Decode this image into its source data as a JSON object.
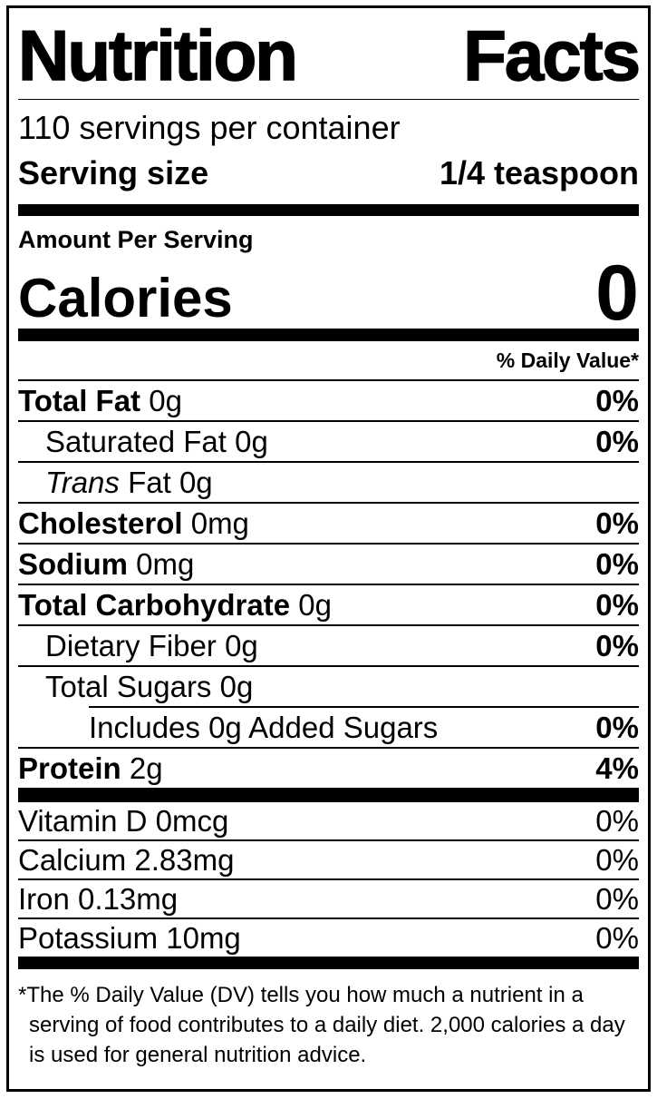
{
  "header": {
    "title_word1": "Nutrition",
    "title_word2": "Facts",
    "servings_per_container": "110 servings per container",
    "serving_size_label": "Serving size",
    "serving_size_value": "1/4 teaspoon"
  },
  "calories": {
    "amount_per_serving_label": "Amount Per Serving",
    "label": "Calories",
    "value": "0"
  },
  "daily_value_header": "% Daily Value*",
  "nutrients": [
    {
      "name": "Total Fat",
      "amount": "0g",
      "dv": "0%"
    },
    {
      "name": "Saturated Fat",
      "amount": "0g",
      "dv": "0%"
    },
    {
      "name_italic": "Trans",
      "name": "Fat",
      "amount": "0g",
      "dv": ""
    },
    {
      "name": "Cholesterol",
      "amount": "0mg",
      "dv": "0%"
    },
    {
      "name": "Sodium",
      "amount": "0mg",
      "dv": "0%"
    },
    {
      "name": "Total Carbohydrate",
      "amount": "0g",
      "dv": "0%"
    },
    {
      "name": "Dietary Fiber",
      "amount": "0g",
      "dv": "0%"
    },
    {
      "name": "Total Sugars",
      "amount": "0g",
      "dv": ""
    },
    {
      "name": "Includes 0g Added Sugars",
      "amount": "",
      "dv": "0%"
    },
    {
      "name": "Protein",
      "amount": "2g",
      "dv": "4%"
    }
  ],
  "vitamins": [
    {
      "name": "Vitamin D",
      "amount": "0mcg",
      "dv": "0%"
    },
    {
      "name": "Calcium",
      "amount": "2.83mg",
      "dv": "0%"
    },
    {
      "name": "Iron",
      "amount": "0.13mg",
      "dv": "0%"
    },
    {
      "name": "Potassium",
      "amount": "10mg",
      "dv": "0%"
    }
  ],
  "footnote": {
    "marker": "*",
    "text": "The % Daily Value (DV) tells you how much a nutrient in a serving of food contributes to a daily diet. 2,000 calories a day is used for general nutrition advice."
  }
}
